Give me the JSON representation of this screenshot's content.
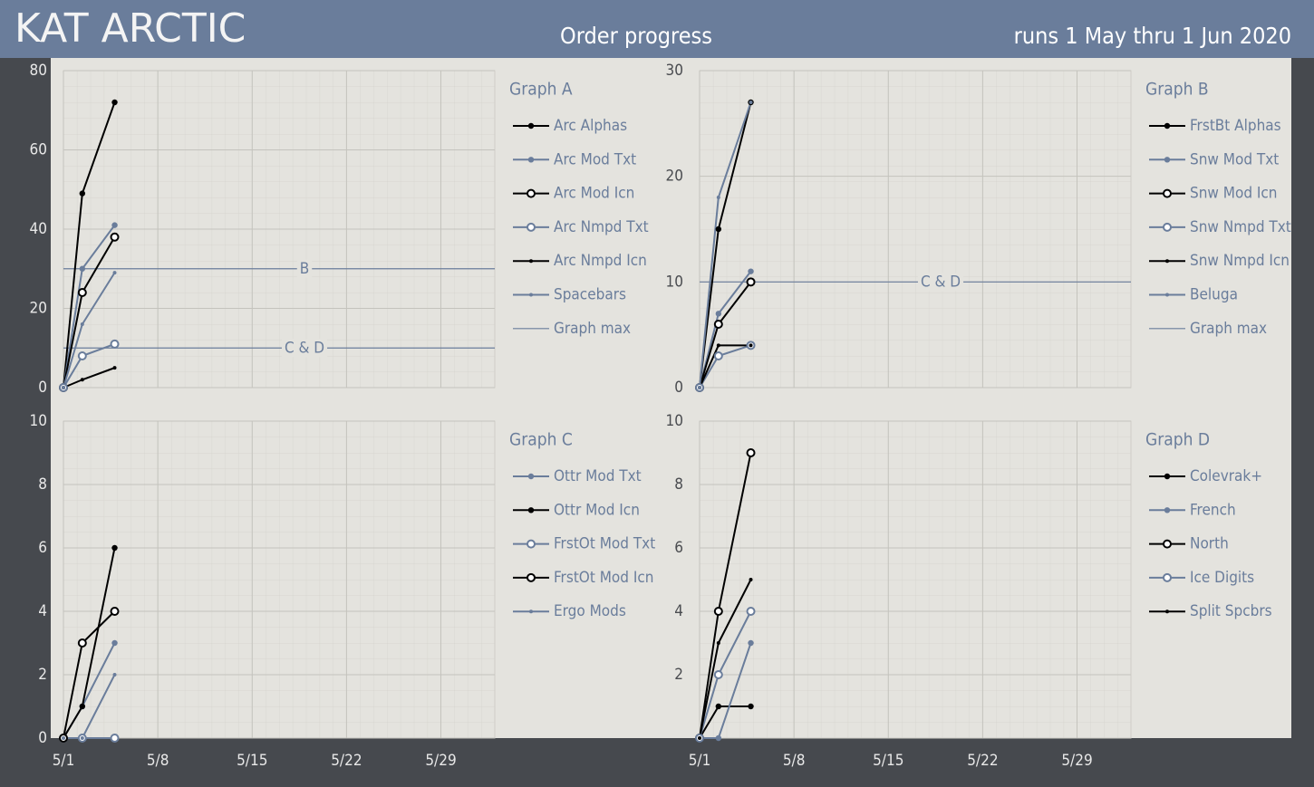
{
  "header": {
    "brand": "KAT ARCTIC",
    "title": "Order progress",
    "subtitle": "runs 1 May thru 1 Jun 2020"
  },
  "chart_data": [
    {
      "type": "line",
      "title": "Graph A",
      "x": [
        1,
        2.4,
        4.8
      ],
      "xlim": [
        1,
        33
      ],
      "xticks": [
        1,
        8,
        15,
        22,
        29
      ],
      "ylim": [
        0,
        80
      ],
      "yticks": [
        0,
        20,
        40,
        60,
        80
      ],
      "grid": true,
      "series": [
        {
          "name": "Arc Alphas",
          "color": "#000000",
          "marker": "dot",
          "values": [
            0,
            49,
            72
          ]
        },
        {
          "name": "Arc Mod Txt",
          "color": "#6a7d9b",
          "marker": "dot",
          "values": [
            0,
            30,
            41
          ]
        },
        {
          "name": "Arc Mod Icn",
          "color": "#000000",
          "marker": "circle",
          "values": [
            0,
            24,
            38
          ]
        },
        {
          "name": "Arc Nmpd Txt",
          "color": "#6a7d9b",
          "marker": "circle",
          "values": [
            0,
            8,
            11
          ]
        },
        {
          "name": "Arc Nmpd Icn",
          "color": "#000000",
          "marker": "small",
          "values": [
            0,
            2,
            5
          ]
        },
        {
          "name": "Spacebars",
          "color": "#6a7d9b",
          "marker": "small",
          "values": [
            0,
            16,
            29
          ]
        }
      ],
      "max_lines": {
        "name": "Graph max",
        "color": "#6a7d9b",
        "lines": [
          {
            "label": "B",
            "value": 30
          },
          {
            "label": "C & D",
            "value": 10
          }
        ]
      }
    },
    {
      "type": "line",
      "title": "Graph B",
      "x": [
        1,
        2.4,
        4.8
      ],
      "xlim": [
        1,
        33
      ],
      "xticks": [
        1,
        8,
        15,
        22,
        29
      ],
      "ylim": [
        0,
        30
      ],
      "yticks": [
        0,
        10,
        20,
        30
      ],
      "grid": true,
      "series": [
        {
          "name": "FrstBt Alphas",
          "color": "#000000",
          "marker": "dot",
          "values": [
            0,
            15,
            27
          ]
        },
        {
          "name": "Snw Mod Txt",
          "color": "#6a7d9b",
          "marker": "dot",
          "values": [
            0,
            7,
            11
          ]
        },
        {
          "name": "Snw Mod Icn",
          "color": "#000000",
          "marker": "circle",
          "values": [
            0,
            6,
            10
          ]
        },
        {
          "name": "Snw Nmpd Txt",
          "color": "#6a7d9b",
          "marker": "circle",
          "values": [
            0,
            3,
            4
          ]
        },
        {
          "name": "Snw Nmpd Icn",
          "color": "#000000",
          "marker": "small",
          "values": [
            0,
            4,
            4
          ]
        },
        {
          "name": "Beluga",
          "color": "#6a7d9b",
          "marker": "small",
          "values": [
            0,
            18,
            27
          ]
        }
      ],
      "max_lines": {
        "name": "Graph max",
        "color": "#6a7d9b",
        "lines": [
          {
            "label": "C & D",
            "value": 10
          }
        ]
      }
    },
    {
      "type": "line",
      "title": "Graph C",
      "x": [
        1,
        2.4,
        4.8
      ],
      "xlim": [
        1,
        33
      ],
      "xticks": [
        {
          "value": 1,
          "label": "5/1"
        },
        {
          "value": 8,
          "label": "5/8"
        },
        {
          "value": 15,
          "label": "5/15"
        },
        {
          "value": 22,
          "label": "5/22"
        },
        {
          "value": 29,
          "label": "5/29"
        }
      ],
      "ylim": [
        0,
        10
      ],
      "yticks": [
        0,
        2,
        4,
        6,
        8,
        10
      ],
      "grid": true,
      "series": [
        {
          "name": "Ottr Mod Txt",
          "color": "#6a7d9b",
          "marker": "dot",
          "values": [
            0,
            1,
            3
          ]
        },
        {
          "name": "Ottr Mod Icn",
          "color": "#000000",
          "marker": "dot",
          "values": [
            0,
            1,
            6
          ]
        },
        {
          "name": "FrstOt Mod Txt",
          "color": "#6a7d9b",
          "marker": "circle",
          "values": [
            0,
            0,
            0
          ]
        },
        {
          "name": "FrstOt Mod Icn",
          "color": "#000000",
          "marker": "circle",
          "values": [
            0,
            3,
            4
          ]
        },
        {
          "name": "Ergo Mods",
          "color": "#6a7d9b",
          "marker": "small",
          "values": [
            0,
            0,
            2
          ]
        }
      ]
    },
    {
      "type": "line",
      "title": "Graph D",
      "x": [
        1,
        2.4,
        4.8
      ],
      "xlim": [
        1,
        33
      ],
      "xticks": [
        {
          "value": 1,
          "label": "5/1"
        },
        {
          "value": 8,
          "label": "5/8"
        },
        {
          "value": 15,
          "label": "5/15"
        },
        {
          "value": 22,
          "label": "5/22"
        },
        {
          "value": 29,
          "label": "5/29"
        }
      ],
      "ylim": [
        0,
        10
      ],
      "yticks": [
        2,
        4,
        6,
        8,
        10
      ],
      "grid": true,
      "series": [
        {
          "name": "Colevrak+",
          "color": "#000000",
          "marker": "dot",
          "values": [
            0,
            1,
            1
          ]
        },
        {
          "name": "French",
          "color": "#6a7d9b",
          "marker": "dot",
          "values": [
            0,
            0,
            3
          ]
        },
        {
          "name": "North",
          "color": "#000000",
          "marker": "circle",
          "values": [
            0,
            4,
            9
          ]
        },
        {
          "name": "Ice Digits",
          "color": "#6a7d9b",
          "marker": "circle",
          "values": [
            0,
            2,
            4
          ]
        },
        {
          "name": "Split Spcbrs",
          "color": "#000000",
          "marker": "small",
          "values": [
            0,
            3,
            5
          ]
        }
      ]
    }
  ]
}
